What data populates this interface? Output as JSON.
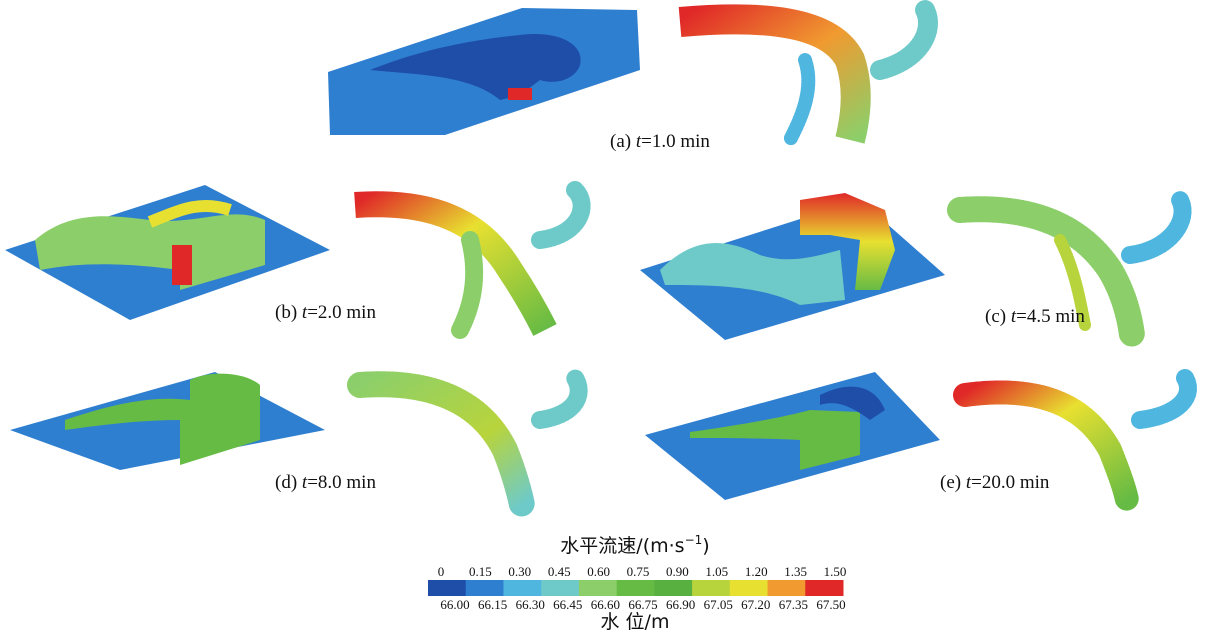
{
  "panels": [
    {
      "label": "(a)",
      "variable": "t",
      "value": "=1.0 min"
    },
    {
      "label": "(b)",
      "variable": "t",
      "value": "=2.0 min"
    },
    {
      "label": "(c)",
      "variable": "t",
      "value": "=4.5 min"
    },
    {
      "label": "(d)",
      "variable": "t",
      "value": "=8.0 min"
    },
    {
      "label": "(e)",
      "variable": "t",
      "value": "=20.0 min"
    }
  ],
  "colorbar": {
    "title": "水平流速/(m·s",
    "title_superscript": "−1",
    "title_end": ")",
    "velocity_labels": [
      "0",
      "0.15",
      "0.30",
      "0.45",
      "0.60",
      "0.75",
      "0.90",
      "1.05",
      "1.20",
      "1.35",
      "1.50"
    ],
    "level_labels": [
      "66.00",
      "66.15",
      "66.30",
      "66.45",
      "66.60",
      "66.75",
      "66.90",
      "67.05",
      "67.20",
      "67.35",
      "67.50"
    ],
    "colors": [
      "#1e4ea8",
      "#2f7fd0",
      "#4fb6e0",
      "#6ecac8",
      "#8ccf6a",
      "#66bb44",
      "#58b040",
      "#b8d43c",
      "#e8e030",
      "#f09a30",
      "#e02828"
    ],
    "bottom_title": "水 位/m"
  }
}
